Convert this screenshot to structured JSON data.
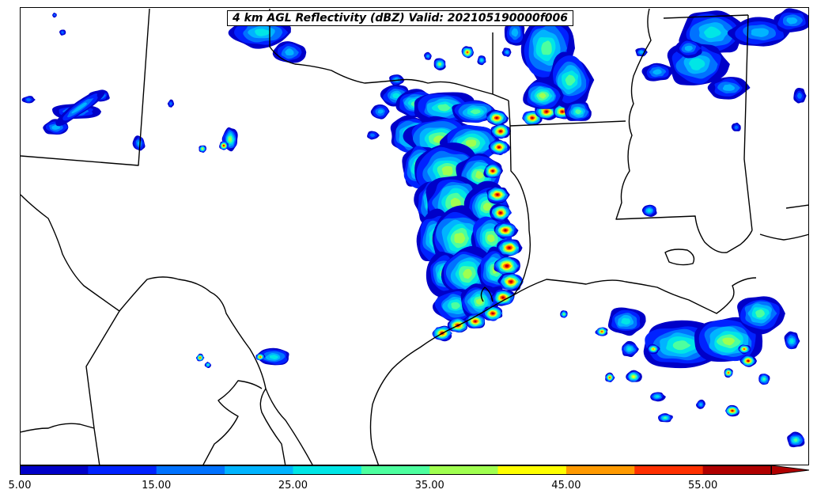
{
  "map": {
    "title": "4 km AGL Reflectivity (dBZ) Valid: 202105190000f006",
    "field": "reflectivity",
    "units": "dBZ",
    "level": "4 km AGL",
    "valid": "202105190000f006"
  },
  "colorbar": {
    "min": 5,
    "max": 60,
    "extend": "max",
    "bins": [
      {
        "from": 5,
        "to": 10,
        "color": "#0000c8"
      },
      {
        "from": 10,
        "to": 15,
        "color": "#0022ff"
      },
      {
        "from": 15,
        "to": 20,
        "color": "#0072ff"
      },
      {
        "from": 20,
        "to": 25,
        "color": "#00b4ff"
      },
      {
        "from": 25,
        "to": 30,
        "color": "#00e6e6"
      },
      {
        "from": 30,
        "to": 35,
        "color": "#4dff9f"
      },
      {
        "from": 35,
        "to": 40,
        "color": "#a0ff50"
      },
      {
        "from": 40,
        "to": 45,
        "color": "#ffff00"
      },
      {
        "from": 45,
        "to": 50,
        "color": "#ff9a00"
      },
      {
        "from": 50,
        "to": 55,
        "color": "#ff3000"
      },
      {
        "from": 55,
        "to": 60,
        "color": "#b00000"
      }
    ],
    "tick_labels": [
      {
        "value": 5,
        "label": "5.00"
      },
      {
        "value": 15,
        "label": "15.00"
      },
      {
        "value": 25,
        "label": "25.00"
      },
      {
        "value": 35,
        "label": "35.00"
      },
      {
        "value": 45,
        "label": "45.00"
      },
      {
        "value": 55,
        "label": "55.00"
      }
    ]
  }
}
